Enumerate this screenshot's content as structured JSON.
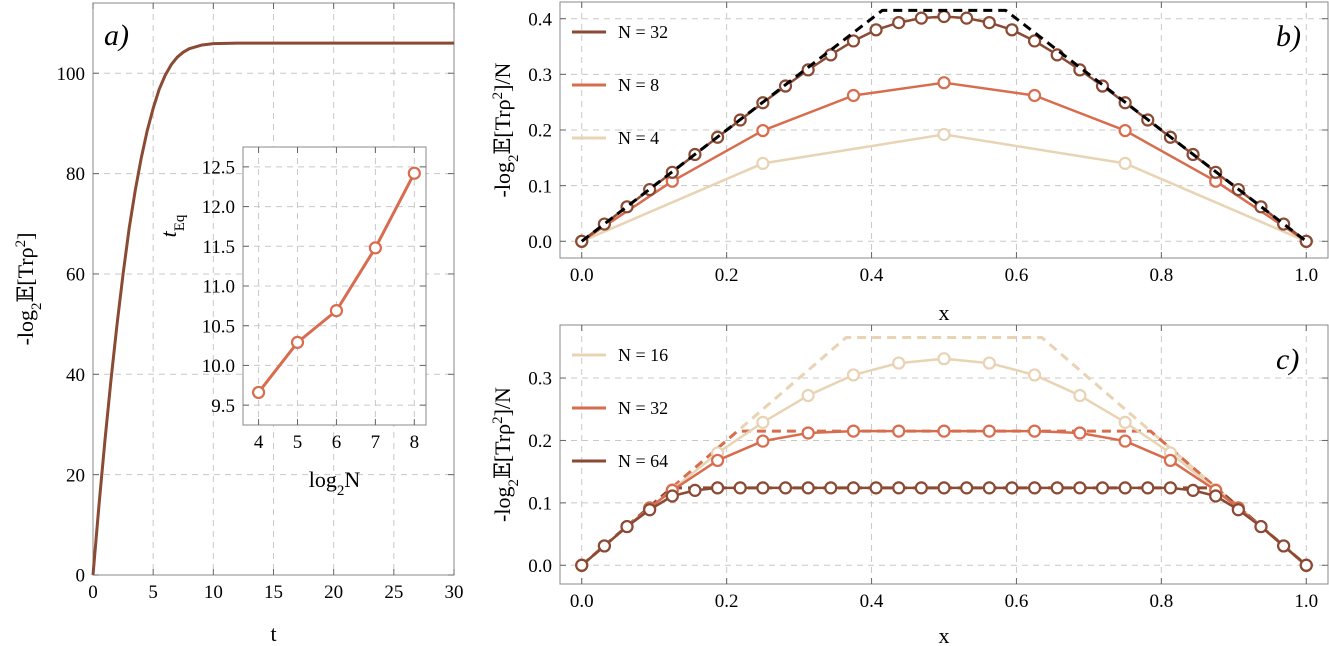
{
  "chart_data": [
    {
      "type": "line",
      "panel_label": "a)",
      "xlabel": "t",
      "ylabel": "-log₂𝔼[Trρ²]",
      "xlim": [
        0,
        30
      ],
      "ylim": [
        0,
        114
      ],
      "xticks": [
        0,
        5,
        10,
        15,
        20,
        25,
        30
      ],
      "yticks": [
        0,
        20,
        40,
        60,
        80,
        100
      ],
      "grid": true,
      "color": "#8a4a34",
      "series": [
        {
          "x": [
            0,
            0.5,
            1,
            1.5,
            2,
            2.5,
            3,
            3.5,
            4,
            4.5,
            5,
            5.5,
            6,
            6.5,
            7,
            7.5,
            8,
            9,
            10,
            12,
            15,
            20,
            25,
            30
          ],
          "y": [
            0,
            14,
            27,
            39,
            50,
            60,
            69,
            76.5,
            83,
            88.5,
            93,
            96.8,
            99.6,
            101.7,
            103.2,
            104.2,
            104.9,
            105.6,
            105.9,
            106,
            106,
            106,
            106,
            106
          ]
        }
      ],
      "inset": {
        "type": "line",
        "xlabel": "log₂N",
        "ylabel": "t",
        "ylabel_sub": "Eq",
        "xlim": [
          3.6,
          8.3
        ],
        "ylim": [
          9.25,
          12.75
        ],
        "xticks": [
          4,
          5,
          6,
          7,
          8
        ],
        "yticks": [
          9.5,
          10.0,
          10.5,
          11.0,
          11.5,
          12.0,
          12.5
        ],
        "ytick_labels": [
          "9.5",
          "10.0",
          "10.5",
          "11.0",
          "11.5",
          "12.0",
          "12.5"
        ],
        "color": "#d86c4e",
        "x": [
          4,
          5,
          6,
          7,
          8
        ],
        "y": [
          9.66,
          10.29,
          10.69,
          11.48,
          12.42
        ]
      }
    },
    {
      "type": "line",
      "panel_label": "b)",
      "xlabel": "x",
      "ylabel": "-log₂𝔼[Trρ²]/N",
      "xlim": [
        -0.03,
        1.03
      ],
      "ylim": [
        -0.03,
        0.43
      ],
      "xticks": [
        0.0,
        0.2,
        0.4,
        0.6,
        0.8,
        1.0
      ],
      "xtick_labels": [
        "0.0",
        "0.2",
        "0.4",
        "0.6",
        "0.8",
        "1.0"
      ],
      "yticks": [
        0.0,
        0.1,
        0.2,
        0.3,
        0.4
      ],
      "ytick_labels": [
        "0.0",
        "0.1",
        "0.2",
        "0.3",
        "0.4"
      ],
      "grid": true,
      "legend_position": "top-left",
      "series": [
        {
          "name": "N = 32",
          "color": "#8a4a34",
          "x": [
            0,
            0.03125,
            0.0625,
            0.09375,
            0.125,
            0.15625,
            0.1875,
            0.21875,
            0.25,
            0.28125,
            0.3125,
            0.34375,
            0.375,
            0.40625,
            0.4375,
            0.46875,
            0.5,
            0.53125,
            0.5625,
            0.59375,
            0.625,
            0.65625,
            0.6875,
            0.71875,
            0.75,
            0.78125,
            0.8125,
            0.84375,
            0.875,
            0.90625,
            0.9375,
            0.96875,
            1
          ],
          "y": [
            0,
            0.031,
            0.062,
            0.093,
            0.124,
            0.156,
            0.187,
            0.218,
            0.249,
            0.279,
            0.308,
            0.335,
            0.36,
            0.38,
            0.393,
            0.401,
            0.404,
            0.401,
            0.393,
            0.38,
            0.36,
            0.335,
            0.308,
            0.279,
            0.249,
            0.218,
            0.187,
            0.156,
            0.124,
            0.093,
            0.062,
            0.031,
            0
          ]
        },
        {
          "name": "N = 8",
          "color": "#d86c4e",
          "x": [
            0,
            0.125,
            0.25,
            0.375,
            0.5,
            0.625,
            0.75,
            0.875,
            1
          ],
          "y": [
            0,
            0.108,
            0.199,
            0.262,
            0.285,
            0.262,
            0.199,
            0.108,
            0
          ]
        },
        {
          "name": "N = 4",
          "color": "#e8d3b4",
          "x": [
            0,
            0.25,
            0.5,
            0.75,
            1
          ],
          "y": [
            0,
            0.14,
            0.192,
            0.14,
            0
          ]
        },
        {
          "style": "dashed",
          "color": "#000000",
          "x": [
            0,
            0.415,
            0.585,
            1
          ],
          "y": [
            0,
            0.415,
            0.415,
            0
          ]
        }
      ]
    },
    {
      "type": "line",
      "panel_label": "c)",
      "xlabel": "x",
      "ylabel": "-log₂𝔼[Trρ²]/N",
      "xlim": [
        -0.03,
        1.03
      ],
      "ylim": [
        -0.03,
        0.385
      ],
      "xticks": [
        0.0,
        0.2,
        0.4,
        0.6,
        0.8,
        1.0
      ],
      "xtick_labels": [
        "0.0",
        "0.2",
        "0.4",
        "0.6",
        "0.8",
        "1.0"
      ],
      "yticks": [
        0.0,
        0.1,
        0.2,
        0.3
      ],
      "ytick_labels": [
        "0.0",
        "0.1",
        "0.2",
        "0.3"
      ],
      "grid": true,
      "legend_position": "top-left",
      "series": [
        {
          "name": "N = 16",
          "color": "#e8d3b4",
          "x": [
            0,
            0.0625,
            0.125,
            0.1875,
            0.25,
            0.3125,
            0.375,
            0.4375,
            0.5,
            0.5625,
            0.625,
            0.6875,
            0.75,
            0.8125,
            0.875,
            0.9375,
            1
          ],
          "y": [
            0,
            0.062,
            0.121,
            0.18,
            0.229,
            0.272,
            0.305,
            0.324,
            0.331,
            0.324,
            0.305,
            0.272,
            0.229,
            0.18,
            0.121,
            0.062,
            0
          ]
        },
        {
          "name": "N = 32",
          "color": "#d86c4e",
          "x": [
            0,
            0.03125,
            0.0625,
            0.09375,
            0.125,
            0.1875,
            0.25,
            0.3125,
            0.375,
            0.4375,
            0.5,
            0.5625,
            0.625,
            0.6875,
            0.75,
            0.8125,
            0.875,
            0.90625,
            0.9375,
            0.96875,
            1
          ],
          "y": [
            0,
            0.031,
            0.062,
            0.092,
            0.12,
            0.168,
            0.199,
            0.212,
            0.215,
            0.215,
            0.215,
            0.215,
            0.215,
            0.212,
            0.199,
            0.168,
            0.12,
            0.092,
            0.062,
            0.031,
            0
          ]
        },
        {
          "name": "N = 64",
          "color": "#8a4a34",
          "x": [
            0,
            0.03125,
            0.0625,
            0.09375,
            0.125,
            0.15625,
            0.1875,
            0.21875,
            0.25,
            0.28125,
            0.3125,
            0.34375,
            0.375,
            0.40625,
            0.4375,
            0.46875,
            0.5,
            0.53125,
            0.5625,
            0.59375,
            0.625,
            0.65625,
            0.6875,
            0.71875,
            0.75,
            0.78125,
            0.8125,
            0.84375,
            0.875,
            0.90625,
            0.9375,
            0.96875,
            1
          ],
          "y": [
            0,
            0.031,
            0.062,
            0.089,
            0.111,
            0.12,
            0.124,
            0.124,
            0.124,
            0.124,
            0.124,
            0.124,
            0.124,
            0.124,
            0.124,
            0.124,
            0.124,
            0.124,
            0.124,
            0.124,
            0.124,
            0.124,
            0.124,
            0.124,
            0.124,
            0.124,
            0.124,
            0.12,
            0.111,
            0.089,
            0.062,
            0.031,
            0
          ]
        },
        {
          "style": "dashed",
          "color": "#e8d3b4",
          "x": [
            0,
            0.365,
            0.635,
            1
          ],
          "y": [
            0,
            0.365,
            0.365,
            0
          ]
        },
        {
          "style": "dashed",
          "color": "#d86c4e",
          "x": [
            0,
            0.215,
            0.785,
            1
          ],
          "y": [
            0,
            0.215,
            0.215,
            0
          ]
        },
        {
          "style": "dashed",
          "color": "#8a4a34",
          "x": [
            0,
            0.124,
            0.876,
            1
          ],
          "y": [
            0,
            0.124,
            0.124,
            0
          ]
        }
      ]
    }
  ]
}
